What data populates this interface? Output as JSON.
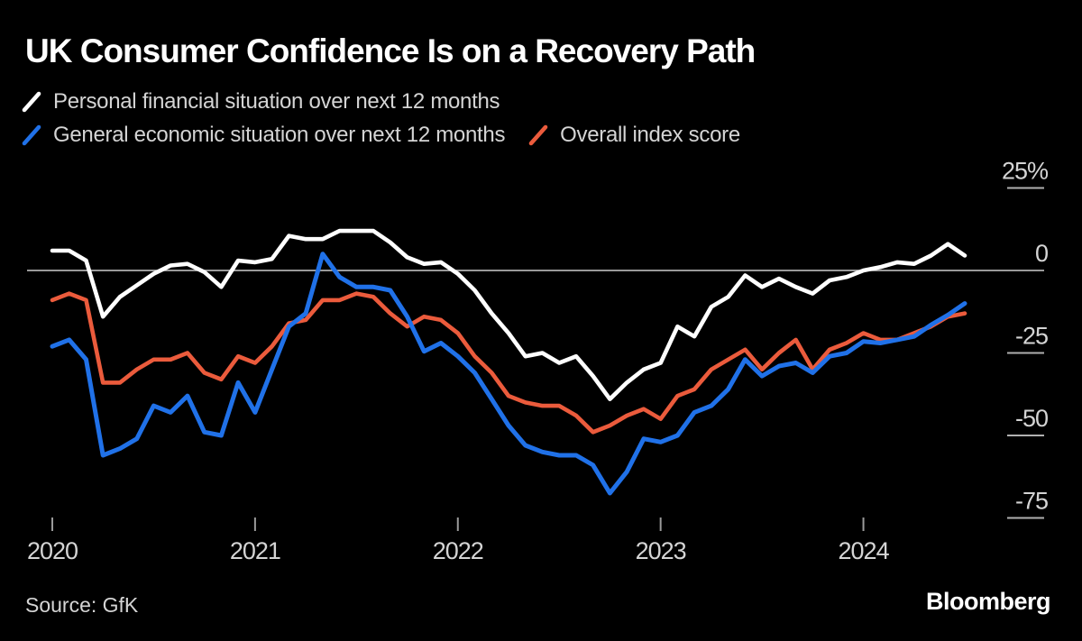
{
  "footer": {
    "source": "Source: GfK",
    "brand": "Bloomberg"
  },
  "chart_data": {
    "type": "line",
    "title": "UK Consumer Confidence Is on a Recovery Path",
    "x_start": "2020-01",
    "x_end": "2024-07",
    "frequency": "monthly",
    "x_tick_labels": [
      "2020",
      "2021",
      "2022",
      "2023",
      "2024"
    ],
    "months_per_tick": 12,
    "y_ticks": [
      25,
      0,
      -25,
      -50,
      -75
    ],
    "y_tick_labels": [
      "25%",
      "0",
      "-25",
      "-50",
      "-75"
    ],
    "ylim": [
      -80,
      28
    ],
    "grid": "zero-line-only",
    "legend_position": "top-left",
    "background_color": "#000000",
    "zero_line_color": "#cccccc",
    "tick_color": "#b0b0b0",
    "label_color": "#d4d4d4",
    "series": [
      {
        "name": "Personal financial situation over next 12 months",
        "color": "#ffffff",
        "values": [
          6,
          6,
          3,
          -14,
          -8,
          -4.5,
          -1,
          1.5,
          2,
          -0.5,
          -5,
          3,
          2.5,
          3.5,
          10.5,
          9.5,
          9.5,
          12,
          12,
          12,
          8.5,
          4,
          2,
          2.5,
          -1,
          -6,
          -13,
          -19,
          -26,
          -25,
          -28,
          -26,
          -32,
          -39,
          -34,
          -30,
          -28,
          -17,
          -20,
          -11,
          -8,
          -1.5,
          -5,
          -2.5,
          -5,
          -7,
          -3,
          -2,
          0,
          1,
          2.5,
          2,
          4.5,
          8,
          4.5
        ]
      },
      {
        "name": "General economic situation over next 12 months",
        "color": "#2071e8",
        "values": [
          -23,
          -21,
          -27,
          -56,
          -54,
          -51,
          -41,
          -43,
          -38,
          -49,
          -50,
          -34,
          -43,
          -30,
          -17,
          -13,
          5,
          -2,
          -5,
          -5,
          -6,
          -14,
          -24.5,
          -22,
          -26,
          -31,
          -39,
          -47,
          -53,
          -55,
          -56,
          -56,
          -59,
          -67.5,
          -61,
          -51,
          -52,
          -50,
          -43,
          -41,
          -36,
          -27,
          -32,
          -29,
          -28,
          -31,
          -26,
          -25,
          -21.5,
          -22,
          -21,
          -20,
          -16.5,
          -13.5,
          -10
        ]
      },
      {
        "name": "Overall index score",
        "color": "#eb5b3c",
        "values": [
          -9,
          -7,
          -9,
          -34,
          -34,
          -30,
          -27,
          -27,
          -25,
          -31,
          -33,
          -26,
          -28,
          -23,
          -16,
          -15,
          -9,
          -9,
          -7,
          -8,
          -13,
          -17,
          -14,
          -15,
          -19,
          -26,
          -31,
          -38,
          -40,
          -41,
          -41,
          -44,
          -49,
          -47,
          -44,
          -42,
          -45,
          -38,
          -36,
          -30,
          -27,
          -24,
          -30,
          -25,
          -21,
          -30,
          -24,
          -22,
          -19,
          -21,
          -21,
          -19,
          -17,
          -14,
          -13
        ]
      }
    ]
  }
}
